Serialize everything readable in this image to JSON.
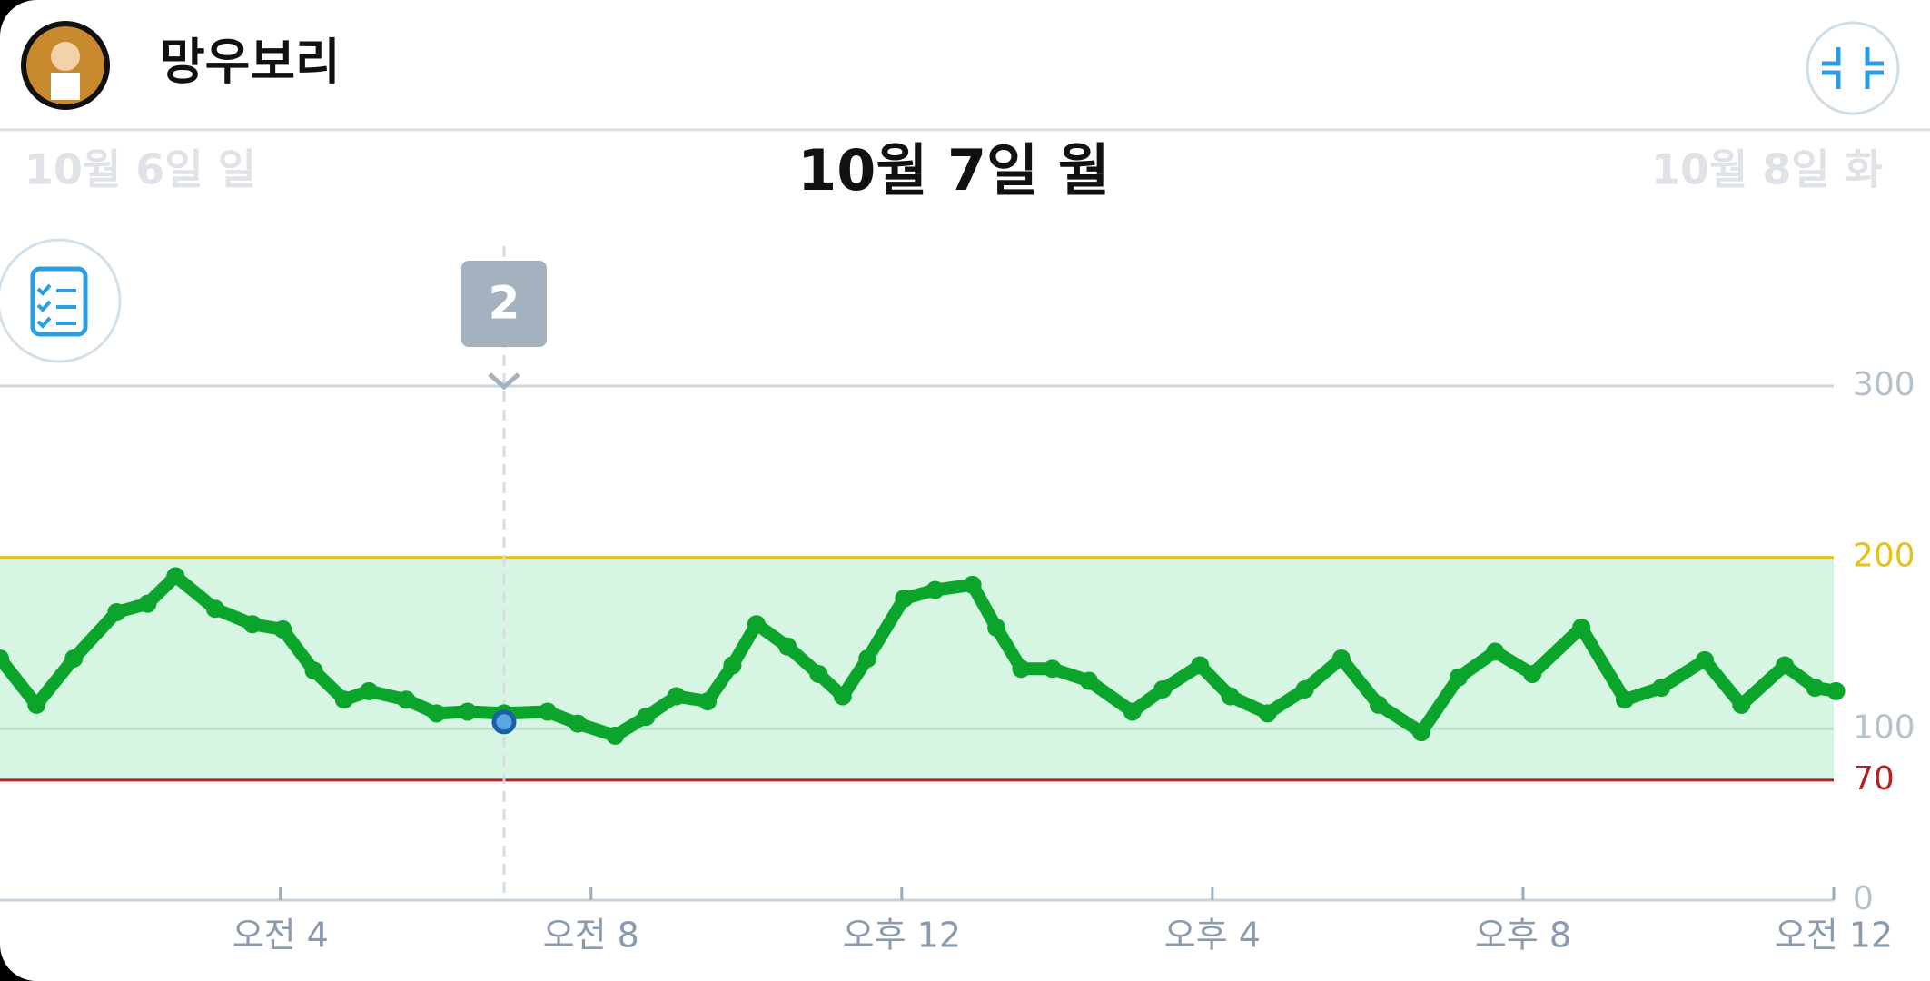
{
  "header": {
    "name": "망우보리"
  },
  "date_nav": {
    "prev": "10월 6일 일",
    "current": "10월 7일 월",
    "next": "10월 8일 화"
  },
  "chart_data": {
    "type": "line",
    "x": [
      0.39,
      0.86,
      1.34,
      1.89,
      2.29,
      2.65,
      3.16,
      3.64,
      4.03,
      4.43,
      4.82,
      5.14,
      5.62,
      6.01,
      6.41,
      6.88,
      7.44,
      7.83,
      8.31,
      8.71,
      9.1,
      9.5,
      9.82,
      10.13,
      10.53,
      10.93,
      11.24,
      11.56,
      12.03,
      12.43,
      12.91,
      13.22,
      13.54,
      13.94,
      14.41,
      14.97,
      15.36,
      15.84,
      16.23,
      16.71,
      17.19,
      17.66,
      18.14,
      18.69,
      19.17,
      19.64,
      20.12,
      20.75,
      21.31,
      21.78,
      22.34,
      22.81,
      23.37,
      23.76,
      24.03
    ],
    "values": [
      141,
      114,
      141,
      168,
      173,
      189,
      170,
      161,
      158,
      134,
      117,
      122,
      117,
      109,
      110,
      109,
      110,
      103,
      96,
      107,
      119,
      116,
      137,
      161,
      148,
      132,
      119,
      141,
      176,
      181,
      184,
      159,
      135,
      135,
      128,
      110,
      123,
      137,
      119,
      109,
      123,
      141,
      114,
      98,
      130,
      145,
      132,
      159,
      117,
      124,
      140,
      114,
      137,
      124,
      122
    ],
    "color": "#0aa52a",
    "xlim": [
      0.39,
      24
    ],
    "xticks": [
      {
        "value": 4,
        "label": "오전 4"
      },
      {
        "value": 8,
        "label": "오전 8"
      },
      {
        "value": 12,
        "label": "오후 12"
      },
      {
        "value": 16,
        "label": "오후 4"
      },
      {
        "value": 20,
        "label": "오후 8"
      },
      {
        "value": 24,
        "label": "오전 12"
      }
    ],
    "ylim": [
      0,
      300
    ],
    "yticks": [
      0,
      100,
      200,
      300
    ],
    "target_range": {
      "low": 70,
      "high": 200,
      "low_color": "#b22222",
      "high_color": "#e5c21a",
      "fill": "#d6f5e2"
    },
    "annotation": {
      "label": "2",
      "x": 6.88,
      "value": 104,
      "color": "#1a5fa8"
    }
  }
}
